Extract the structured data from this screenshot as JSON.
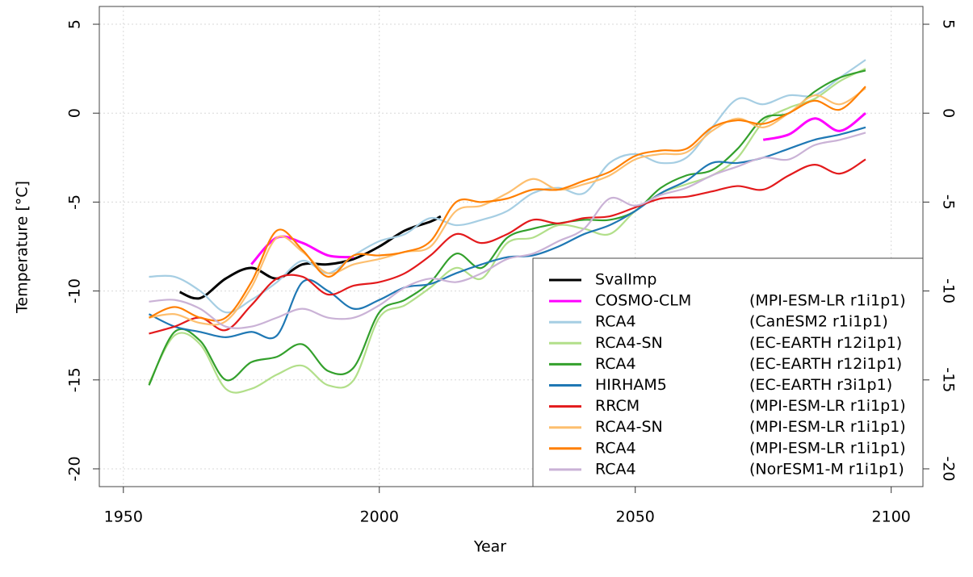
{
  "chart_data": {
    "type": "line",
    "x_label": "Year",
    "y_label": "Temperature [°C]",
    "x": [
      1955,
      1960,
      1965,
      1970,
      1975,
      1980,
      1985,
      1990,
      1995,
      2000,
      2005,
      2010,
      2015,
      2020,
      2025,
      2030,
      2035,
      2040,
      2045,
      2050,
      2055,
      2060,
      2065,
      2070,
      2075,
      2080,
      2085,
      2090,
      2095
    ],
    "xlim": [
      1945.3,
      2106.2
    ],
    "xticks": [
      1950,
      2000,
      2050,
      2100
    ],
    "ylim": [
      -21,
      6
    ],
    "yticks": [
      -20,
      -15,
      -10,
      -5,
      0,
      5
    ],
    "grid": true,
    "legend": "bottom-right",
    "series": [
      {
        "name": "SvalImp",
        "color": "#000000",
        "x": [
          1961,
          1965,
          1970,
          1975,
          1980,
          1985,
          1990,
          1995,
          2000,
          2005,
          2010,
          2012
        ],
        "values": [
          -10.06,
          -10.4,
          -9.3,
          -8.7,
          -9.3,
          -8.5,
          -8.5,
          -8.2,
          -7.5,
          -6.6,
          -6.1,
          -5.8
        ]
      },
      {
        "name": "COSMO-CLM",
        "model": "(MPI-ESM-LR r1i1p1)",
        "color": "#ff00ff",
        "values": [
          null,
          null,
          null,
          null,
          -8.5,
          -7.0,
          -7.3,
          -8.0,
          -8.1,
          null,
          null,
          null,
          null,
          null,
          null,
          null,
          null,
          null,
          null,
          null,
          null,
          null,
          null,
          null,
          -1.5,
          -1.2,
          -0.3,
          -1.0,
          0.0
        ]
      },
      {
        "name": "RCA4",
        "model": "(CanESM2 r1i1p1)",
        "color": "#a6cee3",
        "values": [
          -9.2,
          -9.2,
          -10.0,
          -11.2,
          -10.5,
          -9.5,
          -8.3,
          -9.0,
          -8.0,
          -7.2,
          -6.8,
          -5.9,
          -6.3,
          -6.0,
          -5.5,
          -4.5,
          -4.2,
          -4.5,
          -2.8,
          -2.3,
          -2.8,
          -2.5,
          -0.8,
          0.8,
          0.5,
          1.0,
          1.0,
          2.0,
          3.0
        ]
      },
      {
        "name": "RCA4-SN",
        "model": "(EC-EARTH r12i1p1)",
        "color": "#b2df8a",
        "values": [
          -15.2,
          -12.5,
          -13.0,
          -15.5,
          -15.5,
          -14.7,
          -14.2,
          -15.3,
          -15.0,
          -11.5,
          -10.8,
          -9.8,
          -8.7,
          -9.3,
          -7.3,
          -7.0,
          -6.3,
          -6.5,
          -6.8,
          -5.5,
          -4.5,
          -4.0,
          -3.5,
          -2.5,
          -0.5,
          0.3,
          0.8,
          1.8,
          2.5
        ]
      },
      {
        "name": "RCA4",
        "model": "(EC-EARTH r12i1p1)",
        "color": "#33a02c",
        "values": [
          -15.3,
          -12.3,
          -12.8,
          -15.0,
          -14.0,
          -13.7,
          -13.0,
          -14.5,
          -14.3,
          -11.2,
          -10.5,
          -9.5,
          -7.9,
          -8.7,
          -7.0,
          -6.5,
          -6.2,
          -6.0,
          -6.0,
          -5.5,
          -4.2,
          -3.5,
          -3.2,
          -2.0,
          -0.3,
          0.0,
          1.2,
          2.0,
          2.4
        ]
      },
      {
        "name": "HIRHAM5",
        "model": "(EC-EARTH r3i1p1)",
        "color": "#1f78b4",
        "values": [
          -11.3,
          -12.0,
          -12.3,
          -12.6,
          -12.3,
          -12.5,
          -9.5,
          -10.0,
          -11.0,
          -10.5,
          -9.8,
          -9.6,
          -9.0,
          -8.5,
          -8.1,
          -8.0,
          -7.5,
          -6.8,
          -6.3,
          -5.5,
          -4.5,
          -3.8,
          -2.8,
          -2.8,
          -2.5,
          -2.0,
          -1.5,
          -1.2,
          -0.8
        ]
      },
      {
        "name": "RRCM",
        "model": "(MPI-ESM-LR r1i1p1)",
        "color": "#e31a1c",
        "values": [
          -12.4,
          -12.0,
          -11.5,
          -12.2,
          -10.8,
          -9.3,
          -9.2,
          -10.2,
          -9.7,
          -9.5,
          -9.0,
          -8.0,
          -6.8,
          -7.3,
          -6.8,
          -6.0,
          -6.2,
          -5.9,
          -5.8,
          -5.3,
          -4.8,
          -4.7,
          -4.4,
          -4.1,
          -4.3,
          -3.5,
          -2.9,
          -3.4,
          -2.6
        ]
      },
      {
        "name": "RCA4-SN",
        "model": "(MPI-ESM-LR r1i1p1)",
        "color": "#fdbf6f",
        "values": [
          -11.5,
          -11.3,
          -11.8,
          -11.7,
          -9.8,
          -7.0,
          -7.8,
          -9.0,
          -8.5,
          -8.2,
          -7.8,
          -7.5,
          -5.5,
          -5.2,
          -4.5,
          -3.7,
          -4.3,
          -4.0,
          -3.5,
          -2.6,
          -2.3,
          -2.2,
          -1.0,
          -0.3,
          -0.8,
          0.0,
          1.0,
          0.5,
          1.4
        ]
      },
      {
        "name": "RCA4",
        "model": "(MPI-ESM-LR r1i1p1)",
        "color": "#ff7f00",
        "values": [
          -11.5,
          -10.9,
          -11.5,
          -11.5,
          -9.5,
          -6.6,
          -7.7,
          -9.2,
          -8.0,
          -8.0,
          -7.8,
          -7.2,
          -5.0,
          -5.0,
          -4.8,
          -4.3,
          -4.3,
          -3.8,
          -3.3,
          -2.4,
          -2.1,
          -2.0,
          -0.8,
          -0.4,
          -0.6,
          0.0,
          0.7,
          0.2,
          1.5
        ]
      },
      {
        "name": "RCA4",
        "model": "(NorESM1-M r1i1p1)",
        "color": "#cab2d6",
        "values": [
          -10.6,
          -10.5,
          -11.0,
          -12.0,
          -12.0,
          -11.5,
          -11.0,
          -11.5,
          -11.5,
          -10.8,
          -9.8,
          -9.3,
          -9.5,
          -9.0,
          -8.2,
          -7.9,
          -7.2,
          -6.5,
          -4.8,
          -5.2,
          -4.6,
          -4.2,
          -3.5,
          -3.0,
          -2.5,
          -2.6,
          -1.8,
          -1.5,
          -1.1
        ]
      }
    ]
  }
}
